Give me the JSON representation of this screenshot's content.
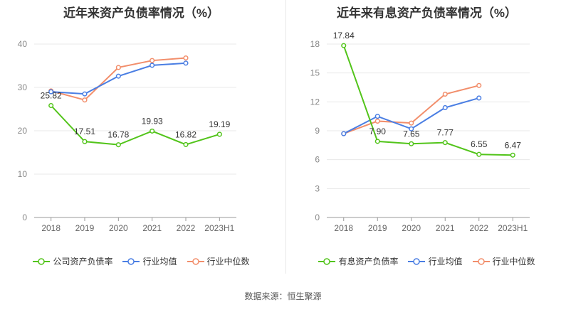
{
  "source": "数据来源：恒生聚源",
  "chart_data": [
    {
      "type": "line",
      "title": "近年来资产负债率情况（%）",
      "categories": [
        "2018",
        "2019",
        "2020",
        "2021",
        "2022",
        "2023H1"
      ],
      "ylim": [
        0,
        40
      ],
      "yticks": [
        0,
        10,
        20,
        30,
        40
      ],
      "grid": true,
      "legend_position": "bottom",
      "series": [
        {
          "name": "公司资产负债率",
          "color": "#52c41a",
          "values": [
            25.82,
            17.51,
            16.78,
            19.93,
            16.82,
            19.19
          ],
          "labels": [
            "25.82",
            "17.51",
            "16.78",
            "19.93",
            "16.82",
            "19.19"
          ]
        },
        {
          "name": "行业均值",
          "color": "#4a7ee3",
          "values": [
            29.0,
            28.5,
            32.6,
            35.1,
            35.6,
            null
          ],
          "labels": []
        },
        {
          "name": "行业中位数",
          "color": "#f28e6b",
          "values": [
            29.2,
            27.1,
            34.6,
            36.2,
            36.8,
            null
          ],
          "labels": []
        }
      ]
    },
    {
      "type": "line",
      "title": "近年来有息资产负债率情况（%）",
      "categories": [
        "2018",
        "2019",
        "2020",
        "2021",
        "2022",
        "2023H1"
      ],
      "ylim": [
        0,
        18
      ],
      "yticks": [
        0,
        3,
        6,
        9,
        12,
        15,
        18
      ],
      "grid": true,
      "legend_position": "bottom",
      "series": [
        {
          "name": "有息资产负债率",
          "color": "#52c41a",
          "values": [
            17.84,
            7.9,
            7.65,
            7.77,
            6.55,
            6.47
          ],
          "labels": [
            "17.84",
            "7.90",
            "7.65",
            "7.77",
            "6.55",
            "6.47"
          ]
        },
        {
          "name": "行业均值",
          "color": "#4a7ee3",
          "values": [
            8.7,
            10.5,
            9.2,
            11.4,
            12.4,
            null
          ],
          "labels": []
        },
        {
          "name": "行业中位数",
          "color": "#f28e6b",
          "values": [
            8.7,
            10.0,
            9.8,
            12.8,
            13.7,
            null
          ],
          "labels": []
        }
      ]
    }
  ]
}
